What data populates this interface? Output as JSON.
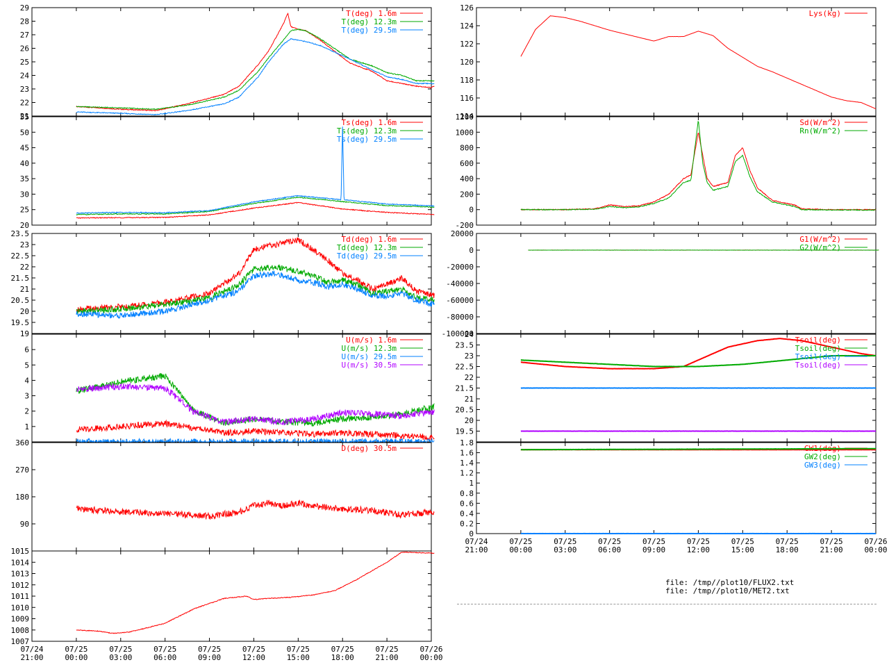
{
  "files": [
    "file: /tmp//plot10/FLUX2.txt",
    "file: /tmp//plot10/MET2.txt"
  ],
  "colors": {
    "red": "#ff0000",
    "green": "#00aa00",
    "blue": "#0080ff",
    "magenta": "#b000ff"
  },
  "chart_data": [
    {
      "type": "line",
      "ylim": [
        21,
        29
      ],
      "yticks": [
        "21",
        "22",
        "23",
        "24",
        "25",
        "26",
        "27",
        "28",
        "29"
      ],
      "series": [
        {
          "name": "T(deg)  1.6m",
          "color": "#ff0000",
          "x": [
            0.0,
            3.0,
            5.4,
            7.5,
            10.0,
            11.0,
            12.3,
            13.0,
            13.5,
            14.0,
            14.3,
            14.5,
            15.0,
            15.5,
            16.5,
            18.5,
            20.0,
            21.0,
            22.0,
            23.0,
            24.0,
            24.2
          ],
          "y": [
            21.7,
            21.5,
            21.4,
            21.9,
            22.6,
            23.2,
            24.8,
            25.8,
            26.8,
            27.8,
            28.6,
            27.6,
            27.4,
            27.3,
            26.6,
            24.9,
            24.3,
            23.6,
            23.4,
            23.2,
            23.1,
            23.2
          ]
        },
        {
          "name": "T(deg) 12.3m",
          "color": "#00aa00",
          "x": [
            0.0,
            3.0,
            5.4,
            7.5,
            10.0,
            11.0,
            12.3,
            13.0,
            14.0,
            14.5,
            15.0,
            15.5,
            16.5,
            18.5,
            20.0,
            21.0,
            22.0,
            23.0,
            24.0,
            24.2
          ],
          "y": [
            21.7,
            21.6,
            21.5,
            21.8,
            22.4,
            22.9,
            24.3,
            25.3,
            26.6,
            27.3,
            27.4,
            27.3,
            26.7,
            25.2,
            24.7,
            24.2,
            24.0,
            23.6,
            23.6,
            23.6
          ]
        },
        {
          "name": "T(deg) 29.5m",
          "color": "#0080ff",
          "x": [
            0.0,
            3.0,
            5.4,
            7.5,
            10.0,
            11.0,
            12.3,
            13.0,
            14.0,
            14.5,
            15.0,
            15.5,
            16.5,
            18.5,
            20.0,
            21.0,
            22.0,
            23.0,
            24.0,
            24.2
          ],
          "y": [
            21.3,
            21.2,
            21.1,
            21.4,
            21.9,
            22.4,
            23.9,
            25.0,
            26.3,
            26.7,
            26.6,
            26.5,
            26.2,
            25.2,
            24.4,
            23.9,
            23.7,
            23.4,
            23.4,
            23.4
          ]
        }
      ]
    },
    {
      "type": "line",
      "ylim": [
        20,
        55
      ],
      "yticks": [
        "20",
        "25",
        "30",
        "35",
        "40",
        "45",
        "50",
        "55"
      ],
      "series": [
        {
          "name": "Ts(deg)  1.6m",
          "color": "#ff0000",
          "x": [
            0.0,
            3.0,
            6.0,
            9.0,
            12.0,
            15.0,
            18.0,
            21.0,
            24.2
          ],
          "y": [
            22.3,
            22.4,
            22.5,
            23.3,
            25.5,
            27.3,
            25.2,
            24.1,
            23.4
          ]
        },
        {
          "name": "Ts(deg) 12.3m",
          "color": "#00aa00",
          "x": [
            0.0,
            3.0,
            6.0,
            9.0,
            12.0,
            15.0,
            18.0,
            21.0,
            24.2
          ],
          "y": [
            23.4,
            23.6,
            23.6,
            24.4,
            27.0,
            29.0,
            27.6,
            26.3,
            25.8
          ]
        },
        {
          "name": "Ts(deg) 29.5m",
          "color": "#0080ff",
          "x": [
            0.0,
            3.0,
            6.0,
            9.0,
            12.0,
            15.0,
            17.9,
            18.0,
            18.1,
            21.0,
            24.2
          ],
          "y": [
            23.9,
            24.1,
            24.0,
            24.7,
            27.5,
            29.5,
            28.2,
            52.0,
            28.2,
            26.8,
            26.2
          ]
        }
      ]
    },
    {
      "type": "line",
      "ylim": [
        19,
        23.5
      ],
      "yticks": [
        "19",
        "19.5",
        "20",
        "20.5",
        "21",
        "21.5",
        "22",
        "22.5",
        "23",
        "23.5",
        "24"
      ],
      "series": [
        {
          "name": "Td(deg)  1.6m",
          "color": "#ff0000",
          "x": [
            0.0,
            3.0,
            6.0,
            9.0,
            11.0,
            12.0,
            13.5,
            15.0,
            16.0,
            17.0,
            18.0,
            19.0,
            20.0,
            21.0,
            22.0,
            23.0,
            24.2
          ],
          "y": [
            20.1,
            20.2,
            20.4,
            20.8,
            21.7,
            22.8,
            23.0,
            23.2,
            22.8,
            22.3,
            21.7,
            21.4,
            21.0,
            21.2,
            21.5,
            20.9,
            20.7
          ]
        },
        {
          "name": "Td(deg) 12.3m",
          "color": "#00aa00",
          "x": [
            0.0,
            3.0,
            6.0,
            9.0,
            11.0,
            12.0,
            13.5,
            15.0,
            16.0,
            17.0,
            18.0,
            19.0,
            20.0,
            21.0,
            22.0,
            23.0,
            24.2
          ],
          "y": [
            20.0,
            20.1,
            20.3,
            20.6,
            21.2,
            21.9,
            22.0,
            21.8,
            21.6,
            21.3,
            21.4,
            21.2,
            20.8,
            20.9,
            21.0,
            20.6,
            20.5
          ]
        },
        {
          "name": "Td(deg) 29.5m",
          "color": "#0080ff",
          "x": [
            0.0,
            3.0,
            6.0,
            9.0,
            11.0,
            12.0,
            13.5,
            15.0,
            16.0,
            17.0,
            18.0,
            19.0,
            20.0,
            21.0,
            22.0,
            23.0,
            24.2
          ],
          "y": [
            19.9,
            19.8,
            20.0,
            20.5,
            20.9,
            21.6,
            21.7,
            21.4,
            21.3,
            21.1,
            21.2,
            21.0,
            20.7,
            20.7,
            20.8,
            20.5,
            20.3
          ]
        }
      ]
    },
    {
      "type": "line",
      "ylim": [
        0,
        7
      ],
      "yticks": [
        "1",
        "2",
        "3",
        "4",
        "5",
        "6"
      ],
      "series": [
        {
          "name": "U(m/s)  1.6m",
          "color": "#ff0000",
          "x": [
            0.0,
            3.0,
            6.0,
            8.0,
            10.0,
            12.0,
            14.0,
            16.0,
            18.0,
            20.0,
            22.0,
            24.2
          ],
          "y": [
            0.8,
            1.0,
            1.2,
            0.9,
            0.6,
            0.7,
            0.6,
            0.5,
            0.6,
            0.5,
            0.4,
            0.3
          ]
        },
        {
          "name": "U(m/s) 12.3m",
          "color": "#00aa00",
          "x": [
            0.0,
            3.0,
            6.0,
            8.0,
            10.0,
            12.0,
            14.0,
            16.0,
            18.0,
            20.0,
            22.0,
            24.2
          ],
          "y": [
            3.3,
            3.9,
            4.3,
            2.0,
            1.2,
            1.5,
            1.3,
            1.2,
            1.5,
            1.6,
            1.8,
            2.3
          ]
        },
        {
          "name": "U(m/s) 29.5m",
          "color": "#0080ff",
          "x": [
            0.0,
            24.2
          ],
          "y": [
            0.0,
            0.0
          ]
        },
        {
          "name": "U(m/s) 30.5m",
          "color": "#b000ff",
          "x": [
            0.0,
            3.0,
            6.0,
            8.0,
            10.0,
            12.0,
            14.0,
            16.0,
            18.0,
            20.0,
            22.0,
            24.2
          ],
          "y": [
            3.4,
            3.6,
            3.5,
            1.9,
            1.3,
            1.5,
            1.3,
            1.5,
            1.9,
            1.8,
            1.7,
            1.9
          ]
        }
      ]
    },
    {
      "type": "line",
      "ylim": [
        0,
        360
      ],
      "yticks": [
        "90",
        "180",
        "270",
        "360"
      ],
      "series": [
        {
          "name": "D(deg)  30.5m",
          "color": "#ff0000",
          "x": [
            0.0,
            3.0,
            6.0,
            9.0,
            11.0,
            12.0,
            13.0,
            14.0,
            15.0,
            16.0,
            18.0,
            20.0,
            22.0,
            24.2
          ],
          "y": [
            140,
            130,
            125,
            115,
            130,
            150,
            160,
            150,
            160,
            150,
            140,
            135,
            120,
            130
          ]
        }
      ]
    },
    {
      "type": "line",
      "ylim": [
        1007,
        1015
      ],
      "yticks": [
        "1007",
        "1008",
        "1009",
        "1010",
        "1011",
        "1012",
        "1013",
        "1014",
        "1015"
      ],
      "xticks": [
        [
          "07/24",
          "21:00"
        ],
        [
          "07/25",
          "00:00"
        ],
        [
          "07/25",
          "03:00"
        ],
        [
          "07/25",
          "06:00"
        ],
        [
          "07/25",
          "09:00"
        ],
        [
          "07/25",
          "12:00"
        ],
        [
          "07/25",
          "15:00"
        ],
        [
          "07/25",
          "18:00"
        ],
        [
          "07/25",
          "21:00"
        ],
        [
          "07/26",
          "00:00"
        ]
      ],
      "series": [
        {
          "name": "",
          "color": "#ff0000",
          "x": [
            0.0,
            1.5,
            2.5,
            3.5,
            4.5,
            6.0,
            8.0,
            10.0,
            11.5,
            12.0,
            13.0,
            14.5,
            16.0,
            17.5,
            19.0,
            21.0,
            22.0,
            24.2
          ],
          "y": [
            1008.0,
            1007.9,
            1007.7,
            1007.8,
            1008.1,
            1008.6,
            1009.9,
            1010.8,
            1011.0,
            1010.7,
            1010.8,
            1010.9,
            1011.1,
            1011.5,
            1012.5,
            1014.0,
            1014.9,
            1014.8
          ]
        }
      ]
    },
    {
      "type": "line",
      "ylim": [
        114,
        126
      ],
      "yticks": [
        "114",
        "116",
        "118",
        "120",
        "122",
        "124",
        "126"
      ],
      "series": [
        {
          "name": "Lys(kg)",
          "color": "#ff0000",
          "x": [
            0.0,
            1.0,
            2.0,
            3.0,
            4.0,
            5.0,
            6.0,
            7.0,
            8.0,
            9.0,
            10.0,
            11.0,
            12.0,
            13.0,
            14.0,
            15.0,
            16.0,
            17.0,
            18.0,
            19.0,
            20.0,
            21.0,
            22.0,
            23.0,
            24.0
          ],
          "y": [
            120.6,
            123.6,
            125.1,
            124.9,
            124.5,
            124.0,
            123.5,
            123.1,
            122.7,
            122.3,
            122.8,
            122.8,
            123.4,
            122.9,
            121.5,
            120.5,
            119.5,
            118.9,
            118.2,
            117.5,
            116.8,
            116.1,
            115.7,
            115.5,
            114.8
          ]
        }
      ]
    },
    {
      "type": "line",
      "ylim": [
        -200,
        1200
      ],
      "yticks": [
        "-200",
        "0",
        "200",
        "400",
        "600",
        "800",
        "1000",
        "1200"
      ],
      "series": [
        {
          "name": "Sd(W/m^2)",
          "color": "#ff0000",
          "x": [
            0.0,
            3.0,
            5.0,
            6.0,
            7.0,
            8.0,
            9.0,
            10.0,
            11.0,
            11.5,
            12.0,
            12.3,
            12.6,
            13.0,
            14.0,
            14.5,
            15.0,
            15.5,
            16.0,
            17.0,
            18.0,
            18.5,
            19.0,
            21.0,
            24.0
          ],
          "y": [
            0,
            0,
            10,
            60,
            40,
            50,
            100,
            200,
            400,
            450,
            1000,
            700,
            400,
            300,
            350,
            700,
            800,
            500,
            280,
            120,
            80,
            60,
            10,
            0,
            0
          ]
        },
        {
          "name": "Rn(W/m^2)",
          "color": "#00aa00",
          "x": [
            0.0,
            3.0,
            5.0,
            6.0,
            7.0,
            8.0,
            9.0,
            10.0,
            11.0,
            11.5,
            12.0,
            12.3,
            12.6,
            13.0,
            14.0,
            14.5,
            15.0,
            15.5,
            16.0,
            17.0,
            18.0,
            18.5,
            19.0,
            21.0,
            24.0
          ],
          "y": [
            0,
            0,
            5,
            40,
            25,
            35,
            80,
            150,
            350,
            380,
            1160,
            600,
            350,
            250,
            300,
            620,
            700,
            420,
            230,
            100,
            60,
            40,
            0,
            -5,
            -5
          ]
        }
      ]
    },
    {
      "type": "line",
      "ylim": [
        -100000,
        20000
      ],
      "yticks": [
        "-100000",
        "-80000",
        "-60000",
        "-40000",
        "-20000",
        "0",
        "20000"
      ],
      "series": [
        {
          "name": "G1(W/m^2)",
          "color": "#ff0000",
          "x": [
            0.5,
            24.2
          ],
          "y": [
            0,
            0
          ]
        },
        {
          "name": "G2(W/m^2)",
          "color": "#00aa00",
          "x": [
            0.5,
            24.2
          ],
          "y": [
            0,
            0
          ]
        }
      ]
    },
    {
      "type": "line",
      "ylim": [
        19,
        24
      ],
      "yticks": [
        "19.5",
        "20",
        "20.5",
        "21",
        "21.5",
        "22",
        "22.5",
        "23",
        "23.5",
        "24"
      ],
      "series": [
        {
          "name": "Tsoil(deg)",
          "color": "#ff0000",
          "x": [
            0.0,
            3.0,
            6.0,
            9.0,
            11.0,
            12.0,
            14.0,
            16.0,
            17.5,
            19.0,
            21.0,
            23.0,
            24.0
          ],
          "y": [
            22.7,
            22.5,
            22.4,
            22.4,
            22.5,
            22.8,
            23.4,
            23.7,
            23.8,
            23.7,
            23.4,
            23.1,
            23.0
          ]
        },
        {
          "name": "Tsoil(deg)",
          "color": "#00aa00",
          "x": [
            0.0,
            3.0,
            6.0,
            9.0,
            12.0,
            15.0,
            18.0,
            21.0,
            24.0
          ],
          "y": [
            22.8,
            22.7,
            22.6,
            22.5,
            22.5,
            22.6,
            22.8,
            23.0,
            23.0
          ]
        },
        {
          "name": "Tsoil(deg)",
          "color": "#0080ff",
          "x": [
            0.0,
            24.0
          ],
          "y": [
            21.5,
            21.5
          ]
        },
        {
          "name": "Tsoil(deg)",
          "color": "#b000ff",
          "x": [
            0.0,
            24.0
          ],
          "y": [
            19.5,
            19.5
          ]
        }
      ]
    },
    {
      "type": "line",
      "ylim": [
        0,
        1.8
      ],
      "yticks": [
        "0",
        "0.2",
        "0.4",
        "0.6",
        "0.8",
        "1",
        "1.2",
        "1.4",
        "1.6",
        "1.8"
      ],
      "xticks": [
        [
          "07/24",
          "21:00"
        ],
        [
          "07/25",
          "00:00"
        ],
        [
          "07/25",
          "03:00"
        ],
        [
          "07/25",
          "06:00"
        ],
        [
          "07/25",
          "09:00"
        ],
        [
          "07/25",
          "12:00"
        ],
        [
          "07/25",
          "15:00"
        ],
        [
          "07/25",
          "18:00"
        ],
        [
          "07/25",
          "21:00"
        ],
        [
          "07/26",
          "00:00"
        ]
      ],
      "series": [
        {
          "name": "GW1(deg)",
          "color": "#ff0000",
          "x": [
            0.0,
            24.0
          ],
          "y": [
            1.66,
            1.66
          ]
        },
        {
          "name": "GW2(deg)",
          "color": "#00aa00",
          "x": [
            0.0,
            12.0,
            24.0
          ],
          "y": [
            1.66,
            1.67,
            1.68
          ]
        },
        {
          "name": "GW3(deg)",
          "color": "#0080ff",
          "x": [
            0.0,
            24.0
          ],
          "y": [
            0.0,
            0.0
          ]
        }
      ]
    }
  ]
}
